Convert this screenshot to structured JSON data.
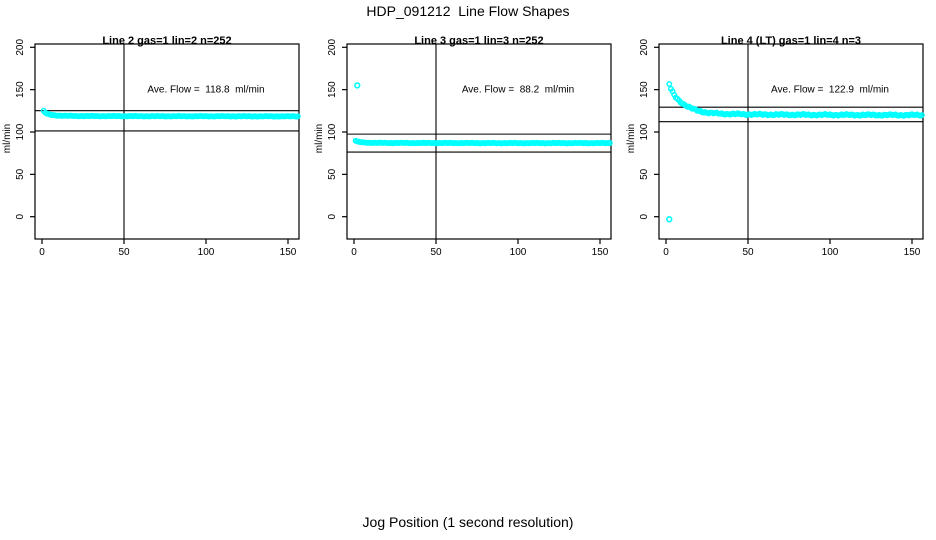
{
  "title": "HDP_091212  Line Flow Shapes",
  "xlabel": "Jog Position (1 second resolution)",
  "colors": {
    "points": "#00FFFF",
    "axis": "#000000",
    "background": "#FFFFFF"
  },
  "axes": {
    "xlim": [
      0,
      150
    ],
    "ylim": [
      0,
      200
    ],
    "x_ticks": [
      0,
      50,
      100,
      150
    ],
    "y_ticks": [
      0,
      50,
      100,
      150,
      200
    ],
    "ylabel": "ml/min",
    "vline_x": 50,
    "grid": false
  },
  "chart_data": [
    {
      "type": "scatter",
      "title": "Line 2 gas=1 lin=2 n=252",
      "annotation": "Ave. Flow =  118.8  ml/min",
      "ave_flow_ml_min": 118.8,
      "n": 252,
      "ref_lines": [
        125.2,
        101.3
      ],
      "noise": 0.25,
      "points": [
        [
          1,
          124.8
        ],
        [
          2,
          122.8
        ],
        [
          3,
          121.6
        ],
        [
          4,
          120.9
        ],
        [
          5,
          120.4
        ],
        [
          6,
          120.1
        ],
        [
          8,
          119.7
        ],
        [
          10,
          119.4
        ],
        [
          14,
          119.1
        ],
        [
          20,
          118.9
        ],
        [
          30,
          118.8
        ],
        [
          50,
          118.7
        ],
        [
          80,
          118.6
        ],
        [
          110,
          118.6
        ],
        [
          140,
          118.5
        ],
        [
          156,
          118.5
        ]
      ],
      "outliers": []
    },
    {
      "type": "scatter",
      "title": "Line 3 gas=1 lin=3 n=252",
      "annotation": "Ave. Flow =  88.2  ml/min",
      "ave_flow_ml_min": 88.2,
      "n": 252,
      "ref_lines": [
        97.5,
        76.3
      ],
      "noise": 0.25,
      "points": [
        [
          1,
          89.8
        ],
        [
          2,
          88.8
        ],
        [
          3,
          88.2
        ],
        [
          5,
          87.7
        ],
        [
          8,
          87.4
        ],
        [
          12,
          87.2
        ],
        [
          20,
          87.1
        ],
        [
          35,
          87.0
        ],
        [
          60,
          87.0
        ],
        [
          90,
          86.9
        ],
        [
          120,
          86.9
        ],
        [
          156,
          86.9
        ]
      ],
      "outliers": [
        [
          2,
          155
        ]
      ]
    },
    {
      "type": "scatter",
      "title": "Line 4 (LT) gas=1 lin=4 n=3",
      "annotation": "Ave. Flow =  122.9  ml/min",
      "ave_flow_ml_min": 122.9,
      "n": 3,
      "ref_lines": [
        129.3,
        112.2
      ],
      "noise": 0.7,
      "points": [
        [
          2,
          156.5
        ],
        [
          3,
          151
        ],
        [
          4,
          147
        ],
        [
          5,
          143.5
        ],
        [
          6,
          141
        ],
        [
          7,
          139
        ],
        [
          8,
          137
        ],
        [
          9,
          135.5
        ],
        [
          10,
          134
        ],
        [
          11,
          132.5
        ],
        [
          12,
          131.5
        ],
        [
          13,
          130.3
        ],
        [
          14,
          129.3
        ],
        [
          15,
          128.4
        ],
        [
          16,
          127.6
        ],
        [
          17,
          126.8
        ],
        [
          18,
          126.1
        ],
        [
          19,
          125.5
        ],
        [
          20,
          124.9
        ],
        [
          22,
          124
        ],
        [
          24,
          123.3
        ],
        [
          26,
          122.7
        ],
        [
          28,
          122.3
        ],
        [
          30,
          122
        ],
        [
          34,
          121.6
        ],
        [
          38,
          121.3
        ],
        [
          44,
          121.1
        ],
        [
          50,
          120.9
        ],
        [
          60,
          120.6
        ],
        [
          70,
          120.5
        ],
        [
          80,
          120.4
        ],
        [
          90,
          120.3
        ],
        [
          100,
          120.2
        ],
        [
          110,
          120.2
        ],
        [
          120,
          120.1
        ],
        [
          130,
          120.1
        ],
        [
          140,
          120.0
        ],
        [
          150,
          120.0
        ],
        [
          156,
          120.0
        ]
      ],
      "outliers": [
        [
          2,
          -3
        ]
      ]
    }
  ]
}
